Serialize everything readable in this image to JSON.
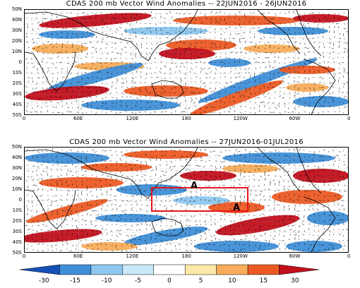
{
  "panels": [
    {
      "title": "CDAS 200 mb Vector Wind Anomalies -- 22JUN2016 - 26JUN2016",
      "lat_labels": [
        "50N",
        "40N",
        "30N",
        "20N",
        "10N",
        "0",
        "10S",
        "20S",
        "30S",
        "40S",
        "50S"
      ],
      "lon_labels": [
        "0",
        "60E",
        "120E",
        "180",
        "120W",
        "60W",
        "0"
      ]
    },
    {
      "title": "CDAS 200 mb Vector Wind Anomalies -- 27JUN2016-01JUL2016",
      "lat_labels": [
        "50N",
        "40N",
        "30N",
        "20N",
        "10N",
        "0",
        "10S",
        "20S",
        "30S",
        "40S",
        "50S"
      ],
      "lon_labels": [
        "0",
        "60E",
        "120E",
        "180",
        "120W",
        "60W",
        "0"
      ],
      "annotation_labels": [
        "A",
        "A"
      ],
      "highlight_box_color": "#e8141c"
    }
  ],
  "colorbar": {
    "ticks": [
      "-30",
      "-15",
      "-10",
      "-5",
      "0",
      "5",
      "10",
      "15",
      "30"
    ],
    "colors": [
      "#1550b8",
      "#3f8fd8",
      "#8dc8ef",
      "#c8e8f8",
      "#ffffff",
      "#fbe9a7",
      "#f8ad5a",
      "#ec5a24",
      "#c2101c"
    ]
  }
}
